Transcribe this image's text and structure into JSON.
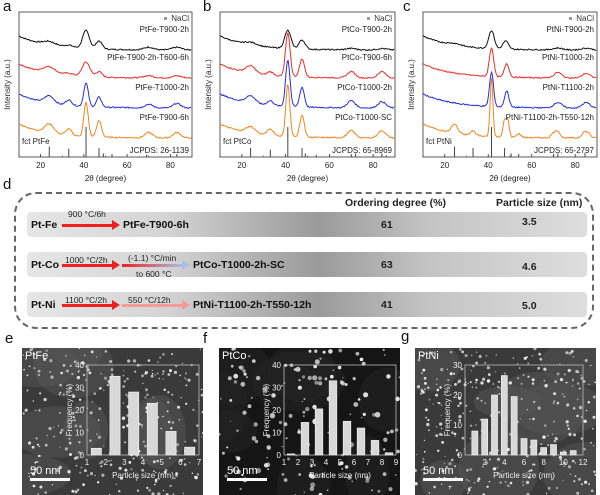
{
  "panel_labels": {
    "a": "a",
    "b": "b",
    "c": "c",
    "d": "d",
    "e": "e",
    "f": "f",
    "g": "g"
  },
  "chart_data": [
    {
      "id": "a",
      "type": "line",
      "title": "",
      "xlabel": "2θ (degree)",
      "ylabel": "Intensity (a.u.)",
      "xlim": [
        10,
        90
      ],
      "xticks": [
        20,
        40,
        60,
        80
      ],
      "legend_note": "NaCl",
      "reference_label": "fct PtFe",
      "reference_card": "JCPDS: 26-1139",
      "reference_peaks": [
        {
          "x": 24,
          "h": 0.35
        },
        {
          "x": 33,
          "h": 0.28
        },
        {
          "x": 41,
          "h": 1.0
        },
        {
          "x": 47,
          "h": 0.3
        },
        {
          "x": 49,
          "h": 0.12
        },
        {
          "x": 53,
          "h": 0.1
        },
        {
          "x": 69,
          "h": 0.08
        },
        {
          "x": 83,
          "h": 0.1
        }
      ],
      "series": [
        {
          "name": "PtFe-T900-2h",
          "color": "#111111",
          "peaks": [
            [
              41,
              1.0,
              2.2
            ],
            [
              47,
              0.45,
              2
            ],
            [
              24,
              0.2,
              4
            ],
            [
              33,
              0.12,
              3
            ],
            [
              70,
              0.15,
              3
            ],
            [
              83,
              0.15,
              3
            ]
          ]
        },
        {
          "name": "PtFe-T900-2h-T600-6h",
          "color": "#e8302a",
          "peaks": [
            [
              41,
              0.8,
              2.5
            ],
            [
              47,
              0.3,
              2
            ],
            [
              24,
              0.35,
              4
            ],
            [
              33,
              0.12,
              3
            ],
            [
              70,
              0.12,
              3
            ],
            [
              83,
              0.12,
              3
            ]
          ]
        },
        {
          "name": "PtFe-T1000-2h",
          "color": "#2530d8",
          "peaks": [
            [
              41,
              1.3,
              1.5
            ],
            [
              47,
              0.55,
              1.6
            ],
            [
              24,
              0.4,
              3
            ],
            [
              33,
              0.3,
              2
            ],
            [
              70,
              0.2,
              2.5
            ],
            [
              83,
              0.25,
              2.5
            ]
          ]
        },
        {
          "name": "PtFe-T900-6h",
          "color": "#f0861e",
          "peaks": [
            [
              41,
              1.9,
              1.4
            ],
            [
              47,
              0.9,
              1.6
            ],
            [
              24,
              0.5,
              3
            ],
            [
              33,
              0.35,
              2
            ],
            [
              70,
              0.3,
              2.5
            ],
            [
              83,
              0.3,
              2.5
            ]
          ]
        }
      ]
    },
    {
      "id": "b",
      "type": "line",
      "title": "",
      "xlabel": "2θ (degree)",
      "ylabel": "Intensity (a.u.)",
      "xlim": [
        10,
        90
      ],
      "xticks": [
        20,
        40,
        60,
        80
      ],
      "legend_note": "NaCl",
      "reference_label": "fct PtCo",
      "reference_card": "JCPDS: 65-8969",
      "reference_peaks": [
        {
          "x": 24,
          "h": 0.3
        },
        {
          "x": 33,
          "h": 0.25
        },
        {
          "x": 41,
          "h": 1.0
        },
        {
          "x": 47.5,
          "h": 0.3
        },
        {
          "x": 49,
          "h": 0.12
        },
        {
          "x": 54,
          "h": 0.08
        },
        {
          "x": 70,
          "h": 0.1
        },
        {
          "x": 72,
          "h": 0.12
        },
        {
          "x": 84,
          "h": 0.12
        },
        {
          "x": 86,
          "h": 0.06
        }
      ],
      "series": [
        {
          "name": "PtCo-T900-2h",
          "color": "#111111",
          "peaks": [
            [
              41,
              1.0,
              2
            ],
            [
              47.5,
              0.5,
              2
            ],
            [
              24,
              0.15,
              4
            ],
            [
              70,
              0.08,
              3
            ],
            [
              84,
              0.08,
              3
            ]
          ]
        },
        {
          "name": "PtCo-T900-6h",
          "color": "#e8302a",
          "peaks": [
            [
              41,
              2.4,
              1.5
            ],
            [
              47.5,
              1.0,
              1.6
            ],
            [
              24,
              0.4,
              3
            ],
            [
              33,
              0.2,
              2
            ],
            [
              70,
              0.35,
              2.5
            ],
            [
              84,
              0.35,
              2.5
            ]
          ]
        },
        {
          "name": "PtCo-T1000-2h",
          "color": "#2530d8",
          "peaks": [
            [
              41,
              2.6,
              1.4
            ],
            [
              47.5,
              1.1,
              1.5
            ],
            [
              24,
              0.4,
              3
            ],
            [
              33,
              0.25,
              2
            ],
            [
              70,
              0.4,
              2.5
            ],
            [
              84,
              0.35,
              2.5
            ]
          ]
        },
        {
          "name": "PtCo-T1000-SC",
          "color": "#f0861e",
          "peaks": [
            [
              41,
              2.9,
              1.3
            ],
            [
              47.5,
              1.2,
              1.5
            ],
            [
              24,
              0.35,
              3
            ],
            [
              33,
              0.35,
              2
            ],
            [
              70,
              0.4,
              2.5
            ],
            [
              84,
              0.4,
              2.5
            ]
          ]
        }
      ]
    },
    {
      "id": "c",
      "type": "line",
      "title": "",
      "xlabel": "2θ (degree)",
      "ylabel": "Intensity (a.u.)",
      "xlim": [
        10,
        90
      ],
      "xticks": [
        20,
        40,
        60,
        80
      ],
      "legend_note": "NaCl",
      "reference_label": "fct PtNi",
      "reference_card": "JCPDS: 65-2797",
      "reference_peaks": [
        {
          "x": 24.5,
          "h": 0.35
        },
        {
          "x": 33,
          "h": 0.3
        },
        {
          "x": 41.5,
          "h": 1.0
        },
        {
          "x": 47.5,
          "h": 0.3
        },
        {
          "x": 50.5,
          "h": 0.12
        },
        {
          "x": 54,
          "h": 0.1
        },
        {
          "x": 70,
          "h": 0.1
        },
        {
          "x": 72,
          "h": 0.12
        },
        {
          "x": 84.5,
          "h": 0.15
        }
      ],
      "series": [
        {
          "name": "PtNi-T900-2h",
          "color": "#111111",
          "peaks": [
            [
              41.5,
              1.0,
              1.8
            ],
            [
              48,
              0.45,
              1.8
            ],
            [
              24.5,
              0.1,
              4
            ],
            [
              72,
              0.1,
              3
            ],
            [
              85,
              0.1,
              3
            ]
          ]
        },
        {
          "name": "PtNi-T1000-2h",
          "color": "#e8302a",
          "peaks": [
            [
              41.5,
              1.6,
              1.4
            ],
            [
              48.5,
              0.75,
              1.5
            ],
            [
              72,
              0.3,
              2.5
            ],
            [
              85,
              0.25,
              2.5
            ]
          ]
        },
        {
          "name": "PtNi-T1100-2h",
          "color": "#2530d8",
          "peaks": [
            [
              41.5,
              1.9,
              1.3
            ],
            [
              48.5,
              0.9,
              1.4
            ],
            [
              72,
              0.3,
              2.5
            ],
            [
              85,
              0.3,
              2.5
            ]
          ]
        },
        {
          "name": "PtNi-T1100-2h-T550-12h",
          "color": "#f0861e",
          "peaks": [
            [
              41.5,
              3.3,
              0.9
            ],
            [
              47.5,
              0.9,
              1
            ],
            [
              49,
              0.9,
              1
            ],
            [
              24.5,
              0.5,
              2
            ],
            [
              33,
              0.25,
              1.5
            ],
            [
              54,
              0.2,
              1.5
            ],
            [
              70,
              0.25,
              1.5
            ],
            [
              72,
              0.35,
              1.5
            ],
            [
              84,
              0.3,
              1.5
            ],
            [
              86,
              0.25,
              1.5
            ]
          ]
        }
      ]
    },
    {
      "id": "e",
      "type": "bar",
      "title": "",
      "xlabel": "Particle size (nm)",
      "ylabel": "Frequency (%)",
      "ylim": [
        0,
        40
      ],
      "yticks": [
        0,
        10,
        20,
        30,
        40
      ],
      "xlim": [
        1,
        7
      ],
      "xticks": [
        1,
        2,
        3,
        4,
        5,
        6,
        7
      ],
      "categories": [
        1.5,
        2.5,
        3.5,
        4.5,
        5.5,
        6.5
      ],
      "values": [
        3,
        35,
        28,
        23,
        10.5,
        3.5
      ]
    },
    {
      "id": "f",
      "type": "bar",
      "title": "",
      "xlabel": "Particle size (nm)",
      "ylabel": "Frequency (%)",
      "ylim": [
        0,
        40
      ],
      "yticks": [
        0,
        10,
        20,
        30,
        40
      ],
      "xlim": [
        1,
        9
      ],
      "xticks": [
        1,
        2,
        3,
        4,
        5,
        6,
        7,
        8,
        9
      ],
      "categories": [
        1.5,
        2.5,
        3.5,
        4.5,
        5.5,
        6.5,
        7.5,
        8.5
      ],
      "values": [
        0.5,
        14.5,
        20.5,
        33,
        15,
        12,
        6.5,
        1
      ]
    },
    {
      "id": "g",
      "type": "bar",
      "title": "",
      "xlabel": "Particle size (nm)",
      "ylabel": "Frequency (%)",
      "ylim": [
        0,
        30
      ],
      "yticks": [
        0,
        10,
        20,
        30
      ],
      "xlim": [
        0,
        12
      ],
      "xticks": [
        2,
        4,
        6,
        8,
        10,
        12
      ],
      "categories": [
        1,
        2,
        3,
        4,
        5,
        6,
        7,
        8,
        9,
        10,
        11
      ],
      "values": [
        8,
        12,
        20,
        26.5,
        19.5,
        5.5,
        5,
        2.5,
        3.5,
        1,
        1.5
      ]
    }
  ],
  "table": {
    "header_ordering": "Ordering degree (%)",
    "header_size": "Particle size (nm)",
    "rows": [
      {
        "start": "Pt-Fe",
        "step1": "900 °C/6h",
        "step2_top": "",
        "step2_bottom": "",
        "product": "PtFe-T900-6h",
        "ordering": "61",
        "size": "3.5"
      },
      {
        "start": "Pt-Co",
        "step1": "1000 °C/2h",
        "step2_top": "(-1.1) °C/min",
        "step2_bottom": "to 600 °C",
        "product": "PtCo-T1000-2h-SC",
        "ordering": "63",
        "size": "4.6"
      },
      {
        "start": "Pt-Ni",
        "step1": "1100 °C/2h",
        "step2_top": "550 °C/12h",
        "step2_bottom": "",
        "product": "PtNi-T1100-2h-T550-12h",
        "ordering": "41",
        "size": "5.0"
      }
    ]
  },
  "tem": [
    {
      "label": "PtFe",
      "scale": "50 nm"
    },
    {
      "label": "PtCo",
      "scale": "50 nm"
    },
    {
      "label": "PtNi",
      "scale": "50 nm"
    }
  ],
  "colors": {
    "black": "#111111",
    "red": "#e8302a",
    "blue": "#2530d8",
    "orange": "#f0861e",
    "arrow": "#ee2020",
    "arrow_light": "#f59a9a",
    "arrow_cool": "#a9c0ea"
  }
}
